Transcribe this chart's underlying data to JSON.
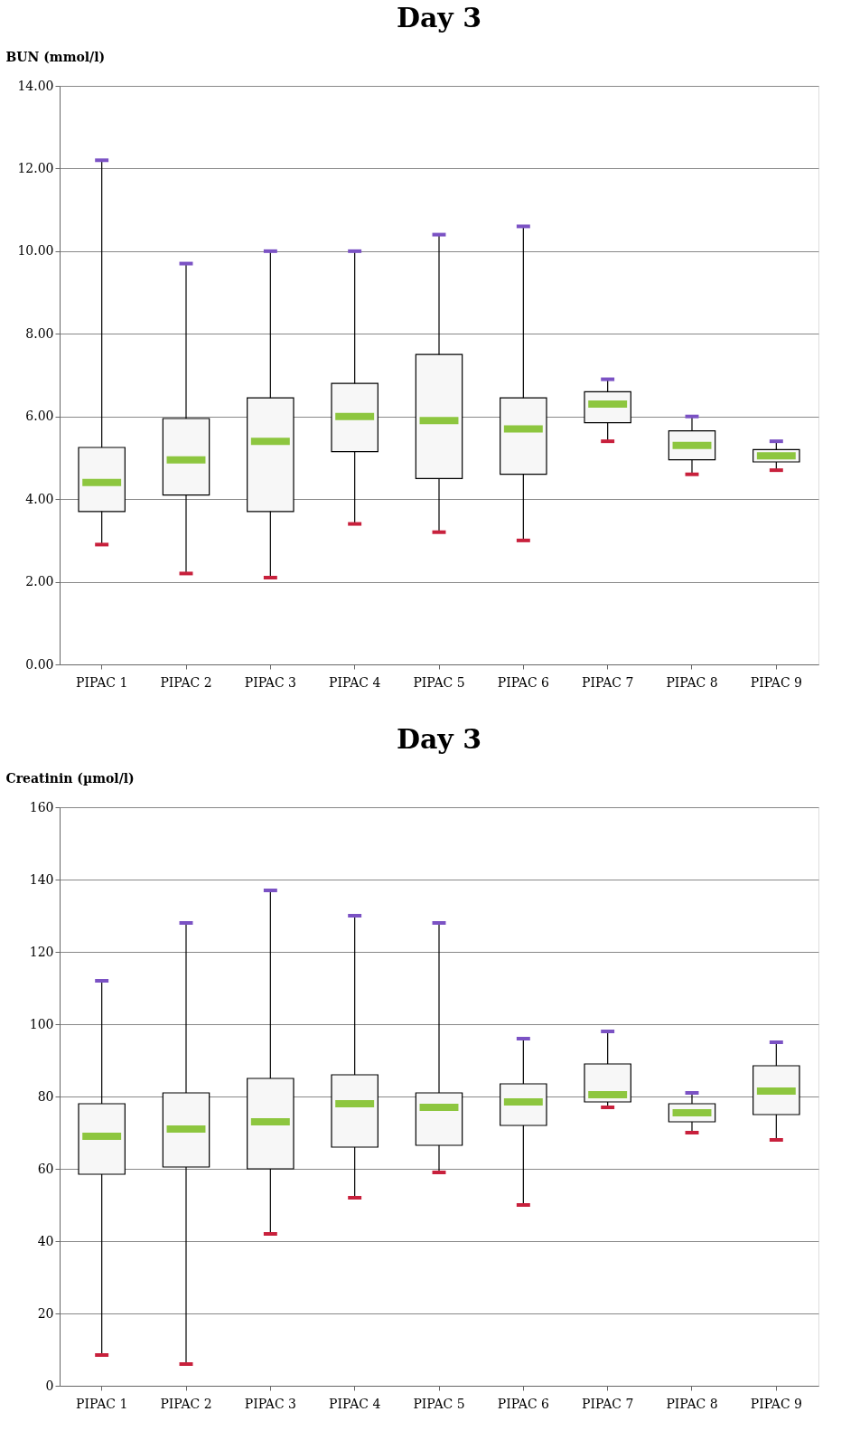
{
  "chart_data": [
    {
      "type": "box",
      "title": "Day 3",
      "ylabel": "BUN (mmol/l)",
      "categories": [
        "PIPAC 1",
        "PIPAC 2",
        "PIPAC 3",
        "PIPAC 4",
        "PIPAC 5",
        "PIPAC 6",
        "PIPAC 7",
        "PIPAC 8",
        "PIPAC 9"
      ],
      "series": [
        {
          "color": "#f7f7f7",
          "boxes": [
            {
              "low": 2.9,
              "q1": 3.7,
              "median": 4.4,
              "q3": 5.25,
              "high": 12.2
            },
            {
              "low": 2.2,
              "q1": 4.1,
              "median": 4.95,
              "q3": 5.95,
              "high": 9.7
            },
            {
              "low": 2.1,
              "q1": 3.7,
              "median": 5.4,
              "q3": 6.45,
              "high": 10.0
            },
            {
              "low": 3.4,
              "q1": 5.15,
              "median": 6.0,
              "q3": 6.8,
              "high": 10.0
            },
            {
              "low": 3.2,
              "q1": 4.5,
              "median": 5.9,
              "q3": 7.5,
              "high": 10.4
            },
            {
              "low": 3.0,
              "q1": 4.6,
              "median": 5.7,
              "q3": 6.45,
              "high": 10.6
            },
            {
              "low": 5.4,
              "q1": 5.85,
              "median": 6.3,
              "q3": 6.6,
              "high": 6.9
            },
            {
              "low": 4.6,
              "q1": 4.95,
              "median": 5.3,
              "q3": 5.65,
              "high": 6.0
            },
            {
              "low": 4.7,
              "q1": 4.9,
              "median": 5.05,
              "q3": 5.2,
              "high": 5.4
            }
          ]
        }
      ],
      "ylim": [
        0,
        14
      ],
      "yticks": [
        {
          "value": 0,
          "label": "0.00"
        },
        {
          "value": 2,
          "label": "2.00"
        },
        {
          "value": 4,
          "label": "4.00"
        },
        {
          "value": 6,
          "label": "6.00"
        },
        {
          "value": 8,
          "label": "8.00"
        },
        {
          "value": 10,
          "label": "10.00"
        },
        {
          "value": 12,
          "label": "12.00"
        },
        {
          "value": 14,
          "label": "14.00"
        }
      ],
      "grid": "y"
    },
    {
      "type": "box",
      "title": "Day 3",
      "ylabel": "Creatinin (µmol/l)",
      "categories": [
        "PIPAC 1",
        "PIPAC 2",
        "PIPAC 3",
        "PIPAC 4",
        "PIPAC 5",
        "PIPAC 6",
        "PIPAC 7",
        "PIPAC 8",
        "PIPAC 9"
      ],
      "series": [
        {
          "color": "#f7f7f7",
          "boxes": [
            {
              "low": 8.5,
              "q1": 58.5,
              "median": 69,
              "q3": 78,
              "high": 112
            },
            {
              "low": 6,
              "q1": 60.5,
              "median": 71,
              "q3": 81,
              "high": 128
            },
            {
              "low": 42,
              "q1": 60,
              "median": 73,
              "q3": 85,
              "high": 137
            },
            {
              "low": 52,
              "q1": 66,
              "median": 78,
              "q3": 86,
              "high": 130
            },
            {
              "low": 59,
              "q1": 66.5,
              "median": 77,
              "q3": 81,
              "high": 128
            },
            {
              "low": 50,
              "q1": 72,
              "median": 78.5,
              "q3": 83.5,
              "high": 96
            },
            {
              "low": 77,
              "q1": 78.5,
              "median": 80.5,
              "q3": 89,
              "high": 98
            },
            {
              "low": 70,
              "q1": 73,
              "median": 75.5,
              "q3": 78,
              "high": 81
            },
            {
              "low": 68,
              "q1": 75,
              "median": 81.5,
              "q3": 88.5,
              "high": 95
            }
          ]
        }
      ],
      "ylim": [
        0,
        160
      ],
      "yticks": [
        0,
        20,
        40,
        60,
        80,
        100,
        120,
        140,
        160
      ],
      "grid": "y"
    }
  ]
}
